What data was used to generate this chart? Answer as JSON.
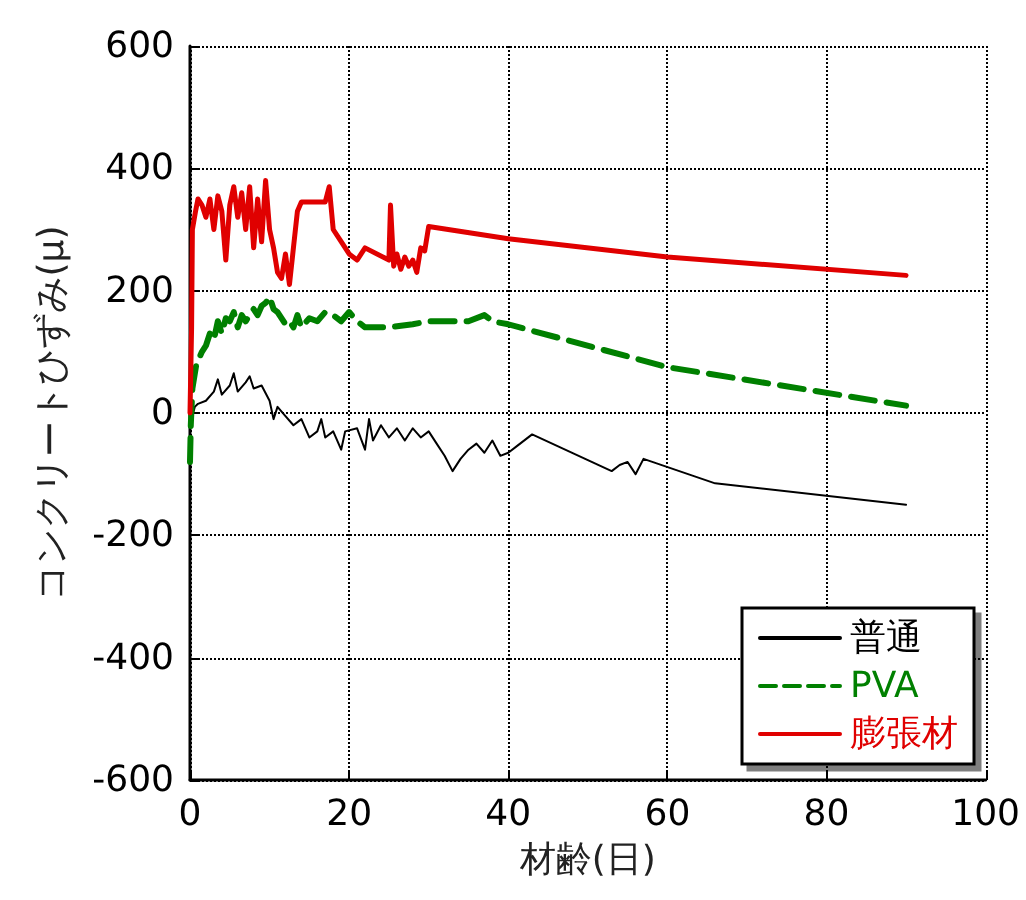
{
  "chart_data": {
    "type": "line",
    "xlabel": "材齢(日)",
    "ylabel": "コンクリートひずみ(μ)",
    "xlim": [
      0,
      100
    ],
    "xticks": [
      0,
      20,
      40,
      60,
      80,
      100
    ],
    "ylim": [
      -600,
      600
    ],
    "yticks": [
      -600,
      -400,
      -200,
      0,
      200,
      400,
      600
    ],
    "grid": true,
    "legend": "bottom right",
    "marker": "none",
    "series": [
      {
        "name": "普通",
        "color": "#000000",
        "line_style": "solid",
        "x": [
          0,
          0.3,
          0.6,
          1,
          2,
          3,
          3.5,
          4,
          5,
          5.5,
          6,
          7,
          7.5,
          8,
          9,
          10,
          10.5,
          11,
          12,
          13,
          14,
          15,
          16,
          16.5,
          17,
          18,
          19,
          19.5,
          21,
          22,
          22.5,
          23,
          24,
          25,
          26,
          27,
          28,
          29,
          30,
          31,
          32,
          33,
          34,
          35,
          36,
          37,
          38,
          39,
          40,
          41,
          43,
          53,
          54,
          55,
          56,
          57,
          66,
          90
        ],
        "values": [
          0,
          -5,
          10,
          15,
          20,
          35,
          55,
          30,
          45,
          65,
          35,
          50,
          60,
          40,
          45,
          20,
          -10,
          10,
          -5,
          -20,
          -10,
          -40,
          -30,
          -10,
          -40,
          -30,
          -60,
          -30,
          -25,
          -60,
          -10,
          -45,
          -20,
          -40,
          -25,
          -45,
          -25,
          -40,
          -30,
          -50,
          -70,
          -95,
          -75,
          -60,
          -50,
          -65,
          -45,
          -70,
          -65,
          -55,
          -35,
          -95,
          -85,
          -80,
          -100,
          -75,
          -115,
          -150
        ]
      },
      {
        "name": "PVA",
        "color": "#008000",
        "line_style": "dashed",
        "x": [
          0,
          0.1,
          0.3,
          0.8,
          1.5,
          2,
          2.5,
          3,
          3.5,
          4,
          4.5,
          5,
          5.5,
          6,
          6.5,
          7,
          8,
          8.5,
          9,
          9.5,
          10,
          10.5,
          11,
          12,
          12.5,
          13,
          13.5,
          14,
          15,
          16,
          17,
          18,
          19,
          20,
          21,
          22,
          25,
          28,
          30,
          32,
          35,
          37,
          38,
          40,
          60,
          90
        ],
        "values": [
          -80,
          -20,
          40,
          80,
          100,
          110,
          130,
          120,
          150,
          130,
          155,
          150,
          165,
          140,
          160,
          150,
          170,
          160,
          175,
          180,
          190,
          170,
          165,
          145,
          150,
          140,
          160,
          140,
          155,
          150,
          165,
          160,
          150,
          165,
          150,
          140,
          140,
          145,
          150,
          150,
          150,
          160,
          150,
          145,
          75,
          12
        ]
      },
      {
        "name": "膨張材",
        "color": "#e00000",
        "line_style": "solid",
        "x": [
          0,
          0.2,
          0.3,
          0.7,
          1,
          1.5,
          2,
          2.5,
          3,
          3.5,
          4,
          4.5,
          5,
          5.5,
          6,
          6.5,
          7,
          7.5,
          8,
          8.5,
          9,
          9.5,
          10,
          10.5,
          11,
          11.5,
          12,
          12.5,
          13,
          13.5,
          14,
          17,
          17.5,
          18,
          19,
          20,
          21,
          22,
          25,
          25.2,
          25.6,
          26,
          26.5,
          27,
          27.5,
          28,
          28.5,
          29,
          29.5,
          30,
          40,
          60,
          90
        ],
        "values": [
          0,
          140,
          300,
          330,
          350,
          340,
          320,
          350,
          300,
          355,
          330,
          250,
          340,
          370,
          320,
          360,
          300,
          370,
          270,
          350,
          280,
          380,
          300,
          270,
          230,
          220,
          260,
          210,
          270,
          330,
          345,
          345,
          370,
          300,
          280,
          260,
          250,
          270,
          250,
          340,
          240,
          260,
          235,
          255,
          240,
          250,
          230,
          270,
          265,
          305,
          285,
          255,
          225
        ]
      }
    ]
  }
}
